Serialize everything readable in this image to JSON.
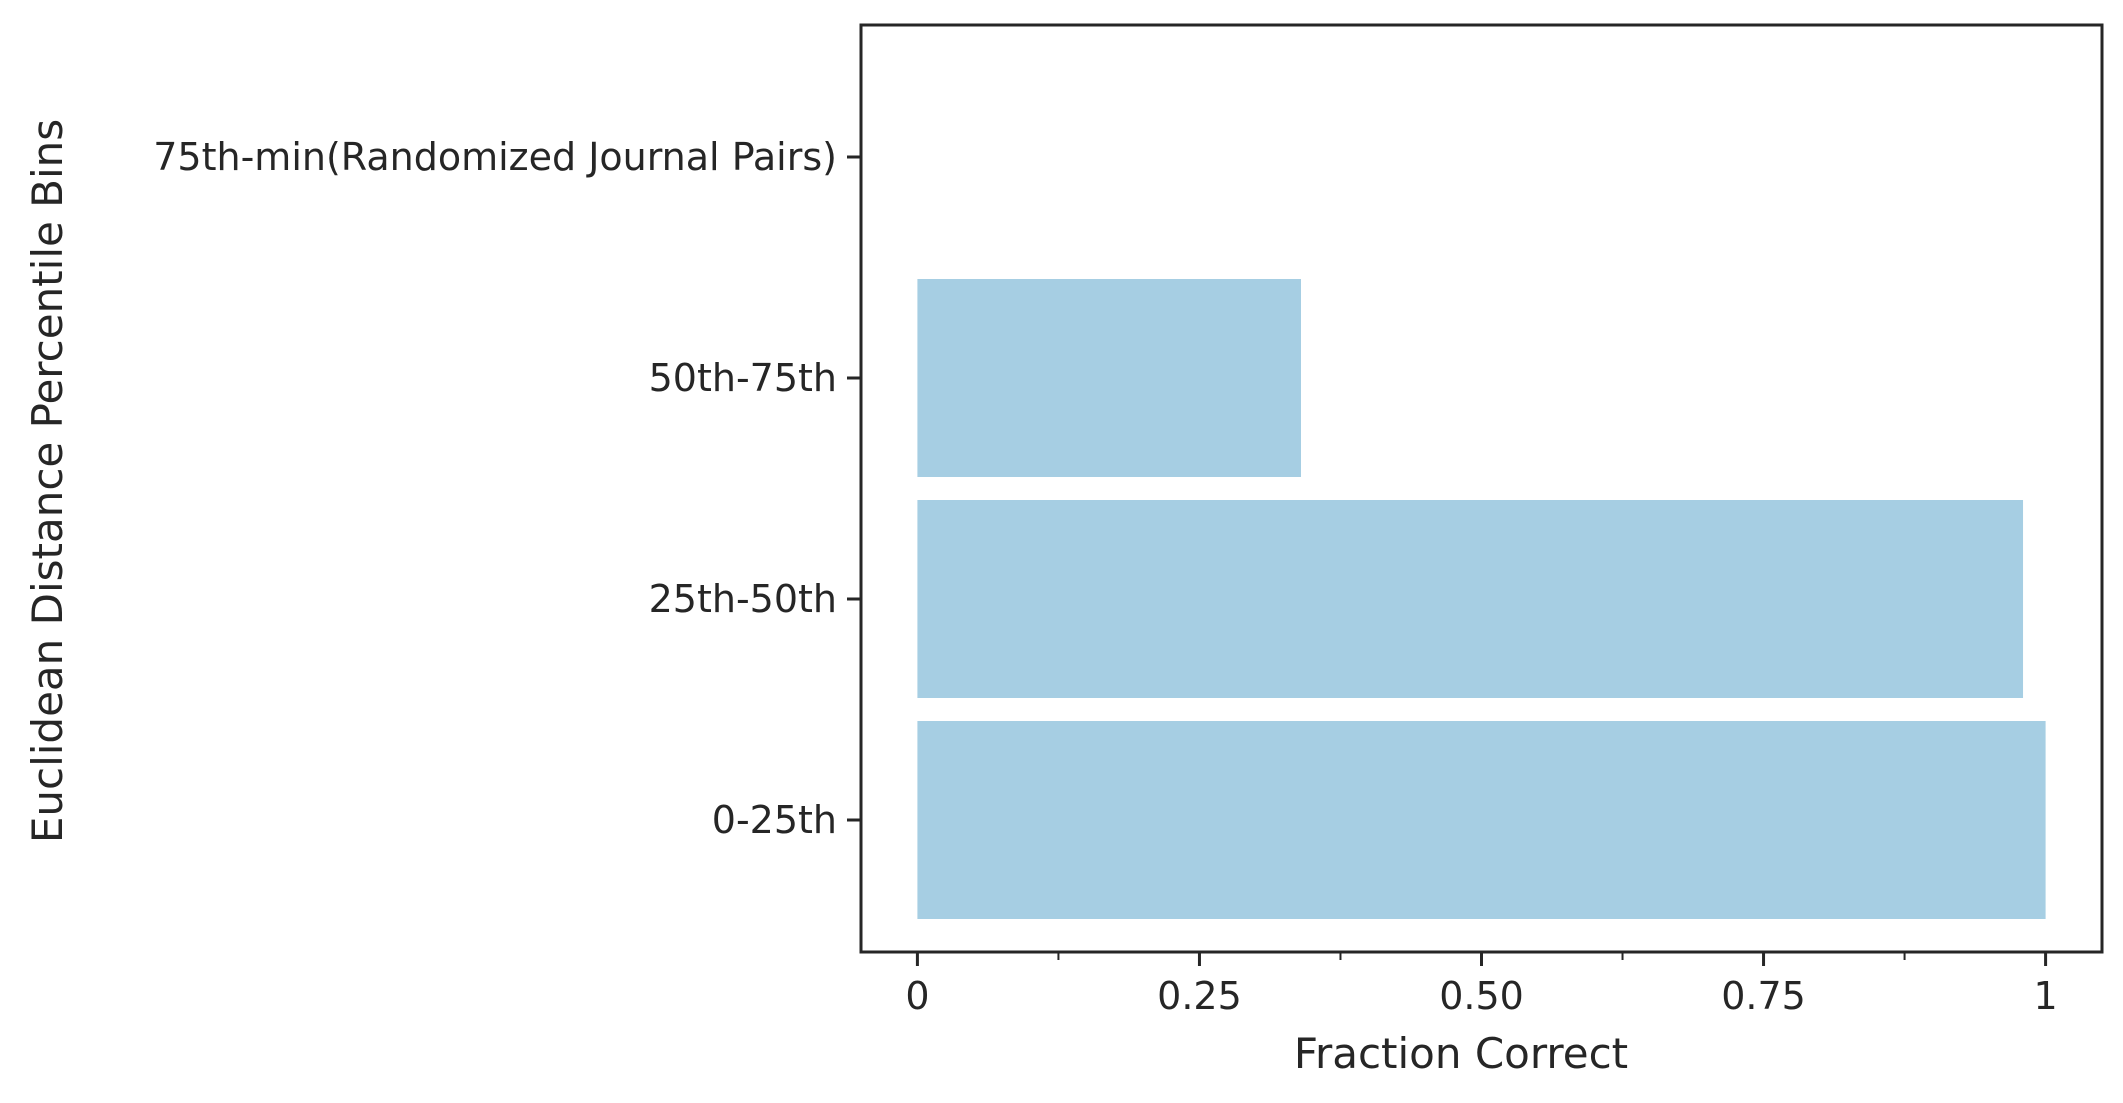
{
  "chart_data": {
    "type": "bar",
    "orientation": "horizontal",
    "categories": [
      "0-25th",
      "25th-50th",
      "50th-75th",
      "75th-min(Randomized Journal Pairs)"
    ],
    "values": [
      1.0,
      0.98,
      0.34,
      0
    ],
    "xlabel": "Fraction Correct",
    "ylabel": "Euclidean Distance Percentile Bins",
    "xlim": [
      -0.05,
      1.05
    ],
    "xticks": [
      0,
      0.25,
      0.5,
      0.75,
      1
    ],
    "xtick_labels": [
      "0",
      "0.25",
      "0.50",
      "0.75",
      "1"
    ],
    "xminor_ticks": [
      0.125,
      0.375,
      0.625,
      0.875
    ],
    "grid": false,
    "legend": "none",
    "bar_color": "#a6cee3",
    "axis_color": "#262626"
  }
}
